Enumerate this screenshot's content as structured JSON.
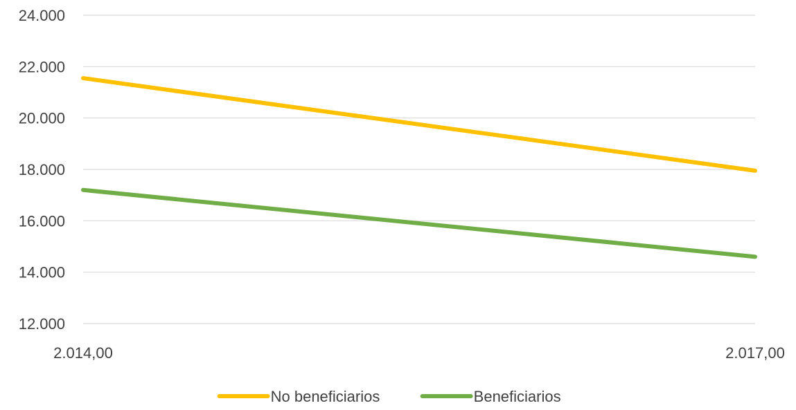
{
  "chart_data": {
    "type": "line",
    "x": [
      2014,
      2017
    ],
    "x_tick_labels": [
      "2.014,00",
      "2.017,00"
    ],
    "xlim": [
      2014,
      2017
    ],
    "ylim": [
      12000,
      24000
    ],
    "y_ticks": [
      12000,
      14000,
      16000,
      18000,
      20000,
      22000,
      24000
    ],
    "y_tick_labels": [
      "12.000",
      "14.000",
      "16.000",
      "18.000",
      "20.000",
      "22.000",
      "24.000"
    ],
    "grid": true,
    "legend_position": "bottom",
    "series": [
      {
        "name": "No beneficiarios",
        "values": [
          21550,
          17950
        ],
        "color": "#ffc000"
      },
      {
        "name": "Beneficiarios",
        "values": [
          17200,
          14600
        ],
        "color": "#70ad47"
      }
    ],
    "gridline_color": "#d9d9d9",
    "text_color": "#404040"
  }
}
